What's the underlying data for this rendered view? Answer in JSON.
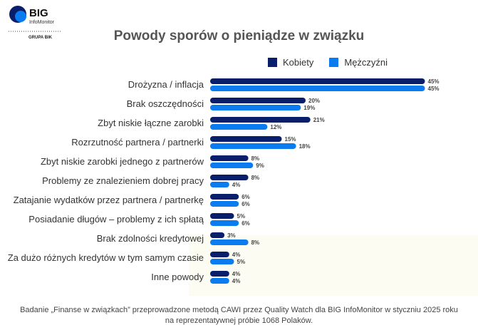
{
  "logo": {
    "brand": "BIG",
    "sub": "InfoMonitor",
    "group": "GRUPA BIK"
  },
  "chart_data": {
    "type": "bar",
    "orientation": "horizontal",
    "title": "Powody sporów o pieniądze w związku",
    "categories": [
      "Drożyzna / inflacja",
      "Brak oszczędności",
      "Zbyt niskie łączne zarobki",
      "Rozrzutność partnera / partnerki",
      "Zbyt niskie zarobki jednego z partnerów",
      "Problemy ze znalezieniem dobrej pracy",
      "Zatajanie wydatków przez partnera / partnerkę",
      "Posiadanie długów – problemy z ich spłatą",
      "Brak zdolności kredytowej",
      "Za dużo różnych kredytów w tym samym czasie",
      "Inne powody"
    ],
    "series": [
      {
        "name": "Kobiety",
        "color": "#0a1f6b",
        "values": [
          45,
          20,
          21,
          15,
          8,
          8,
          6,
          5,
          3,
          4,
          4
        ]
      },
      {
        "name": "Mężczyźni",
        "color": "#0a7cf0",
        "values": [
          45,
          19,
          12,
          18,
          9,
          4,
          6,
          6,
          8,
          5,
          4
        ]
      }
    ],
    "unit": "%",
    "legend": "top-right",
    "grid": false
  },
  "footnote": [
    "Badanie „Finanse w związkach” przeprowadzone metodą CAWI przez Quality Watch dla BIG InfoMonitor w styczniu 2025 roku",
    "na reprezentatywnej próbie 1068 Polaków."
  ]
}
